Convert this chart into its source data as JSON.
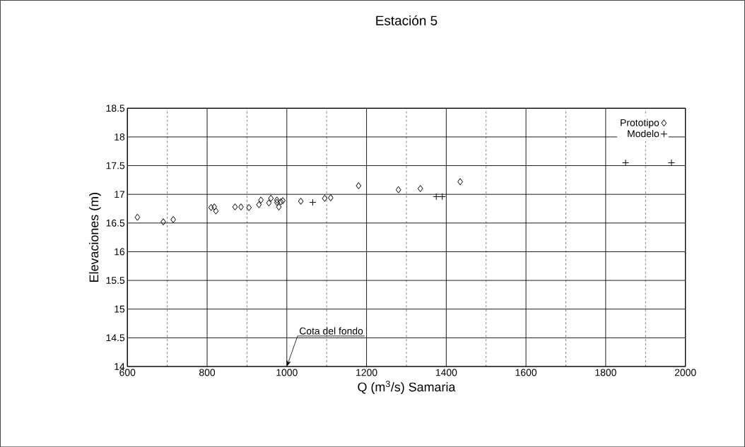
{
  "chart_data": {
    "type": "scatter",
    "title": "Estación 5",
    "xlabel": "Q (m$^{3}$/s) Samaria",
    "ylabel": "Elevaciones (m)",
    "xlim": [
      600,
      2000
    ],
    "xticks": [
      600,
      800,
      1000,
      1200,
      1400,
      1600,
      1800,
      2000
    ],
    "ylim": [
      14,
      18.5
    ],
    "yticks": [
      14,
      14.5,
      15,
      15.5,
      16,
      16.5,
      17,
      17.5,
      18,
      18.5
    ],
    "grid": true,
    "legend": "top right",
    "annotations": [
      "Cota del fondo"
    ],
    "series": [
      {
        "name": "Prototipo",
        "color": "#000000",
        "marker": "diamond",
        "x": [
          625,
          690,
          715,
          810,
          818,
          822,
          870,
          885,
          905,
          930,
          935,
          955,
          960,
          975,
          975,
          980,
          985,
          990,
          1035,
          1095,
          1110,
          1180,
          1280,
          1335,
          1435
        ],
        "values": [
          16.6,
          16.52,
          16.56,
          16.77,
          16.78,
          16.71,
          16.78,
          16.78,
          16.77,
          16.82,
          16.9,
          16.85,
          16.93,
          16.86,
          16.9,
          16.78,
          16.87,
          16.89,
          16.88,
          16.93,
          16.94,
          17.15,
          17.08,
          17.1,
          17.22
        ]
      },
      {
        "name": "Modelo",
        "color": "#000000",
        "marker": "cross",
        "x": [
          1065,
          1375,
          1390,
          1850,
          1965
        ],
        "values": [
          16.86,
          16.96,
          16.96,
          17.55,
          17.55
        ]
      }
    ]
  }
}
